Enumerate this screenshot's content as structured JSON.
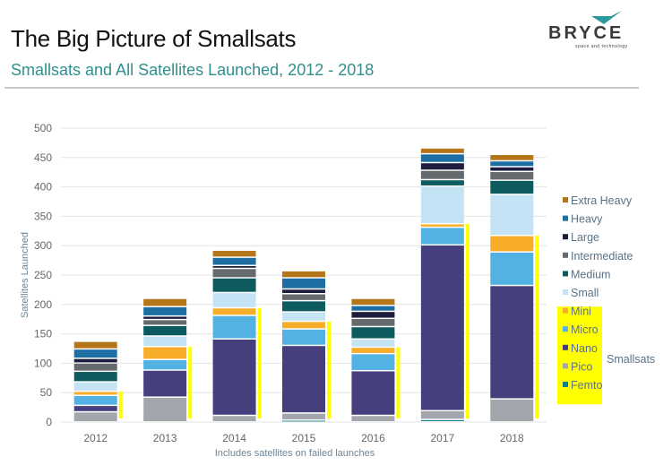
{
  "header": {
    "title": "The Big Picture of Smallsats",
    "subtitle": "Smallsats and All Satellites Launched, 2012 - 2018",
    "logo_text": "BRYCE",
    "logo_tagline": "space and technology"
  },
  "colors": {
    "Femto": "#0e7f8f",
    "Pico": "#a3a7ad",
    "Nano": "#463f7e",
    "Micro": "#52b2e4",
    "Mini": "#f8ad2a",
    "Small": "#c4e3f5",
    "Medium": "#0d5a5f",
    "Intermediate": "#646a6e",
    "Large": "#1f1d3d",
    "Heavy": "#1d6fa3",
    "Extra Heavy": "#b5761a",
    "highlight": "#ffff00",
    "gridline": "#e3e3e3",
    "subtitle": "#2f8f8f"
  },
  "chart_data": {
    "type": "bar",
    "stacked": true,
    "title": "Smallsats and All Satellites Launched, 2012 - 2018",
    "xlabel": "Includes satellites on failed launches",
    "ylabel": "Satellites Launched",
    "ylim": [
      0,
      500
    ],
    "yticks": [
      0,
      50,
      100,
      150,
      200,
      250,
      300,
      350,
      400,
      450,
      500
    ],
    "grid": true,
    "legend_position": "right",
    "categories": [
      "2012",
      "2013",
      "2014",
      "2015",
      "2016",
      "2017",
      "2018"
    ],
    "series": [
      {
        "name": "Femto",
        "values": [
          0,
          0,
          0,
          3,
          0,
          4,
          0
        ]
      },
      {
        "name": "Pico",
        "values": [
          17,
          42,
          11,
          12,
          11,
          15,
          39
        ]
      },
      {
        "name": "Nano",
        "values": [
          11,
          46,
          130,
          115,
          76,
          282,
          193
        ]
      },
      {
        "name": "Micro",
        "values": [
          17,
          18,
          40,
          28,
          29,
          30,
          57
        ]
      },
      {
        "name": "Mini",
        "values": [
          7,
          22,
          13,
          13,
          11,
          6,
          28
        ]
      },
      {
        "name": "Small",
        "values": [
          16,
          18,
          26,
          16,
          14,
          64,
          70
        ]
      },
      {
        "name": "Medium",
        "values": [
          18,
          18,
          25,
          19,
          21,
          11,
          24
        ]
      },
      {
        "name": "Intermediate",
        "values": [
          14,
          10,
          16,
          12,
          14,
          16,
          15
        ]
      },
      {
        "name": "Large",
        "values": [
          8,
          6,
          5,
          8,
          12,
          13,
          8
        ]
      },
      {
        "name": "Heavy",
        "values": [
          16,
          16,
          14,
          19,
          10,
          15,
          10
        ]
      },
      {
        "name": "Extra Heavy",
        "values": [
          13,
          14,
          12,
          12,
          12,
          10,
          11
        ]
      }
    ],
    "smallsat_classes": [
      "Femto",
      "Pico",
      "Nano",
      "Micro",
      "Mini"
    ],
    "smallsat_group_label": "Smallsats",
    "legend_order": [
      "Extra Heavy",
      "Heavy",
      "Large",
      "Intermediate",
      "Medium",
      "Small",
      "Mini",
      "Micro",
      "Nano",
      "Pico",
      "Femto"
    ]
  }
}
